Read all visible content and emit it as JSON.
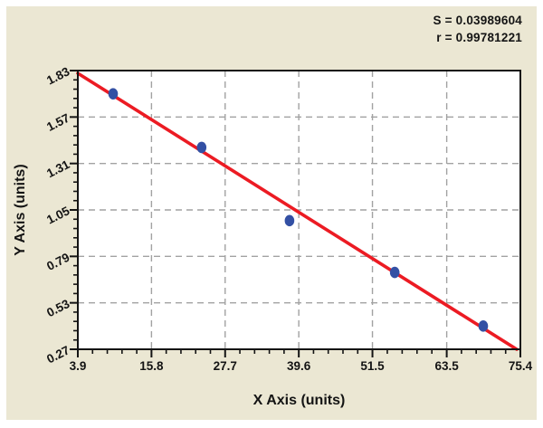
{
  "chart_data": {
    "type": "scatter",
    "title": "",
    "xlabel": "X Axis (units)",
    "ylabel": "Y Axis (units)",
    "xlim": [
      3.9,
      75.4
    ],
    "ylim": [
      0.27,
      1.83
    ],
    "x_tick_labels": [
      "3.9",
      "15.8",
      "27.7",
      "39.6",
      "51.5",
      "63.5",
      "75.4"
    ],
    "y_tick_labels": [
      "0.27",
      "0.53",
      "0.79",
      "1.05",
      "1.31",
      "1.57",
      "1.83"
    ],
    "minor_divisions_per_interval": 5,
    "grid": "dashed-interior",
    "legend": "none",
    "points": [
      {
        "x": 9.6,
        "y": 1.7
      },
      {
        "x": 23.9,
        "y": 1.4
      },
      {
        "x": 38.1,
        "y": 0.99
      },
      {
        "x": 55.1,
        "y": 0.7
      },
      {
        "x": 69.4,
        "y": 0.4
      }
    ],
    "fit_line": {
      "x1": 3.9,
      "y1": 1.815,
      "x2": 74.8,
      "y2": 0.27
    },
    "annotations": [
      "S = 0.03989604",
      "r = 0.99781221"
    ],
    "colors": {
      "panel_background": "#ebe7d3",
      "plot_background": "#ffffff",
      "frame": "#141414",
      "grid": "#a2a2a2",
      "fit_line": "#ec1b23",
      "points": "#3350a4",
      "text": "#141414"
    }
  }
}
